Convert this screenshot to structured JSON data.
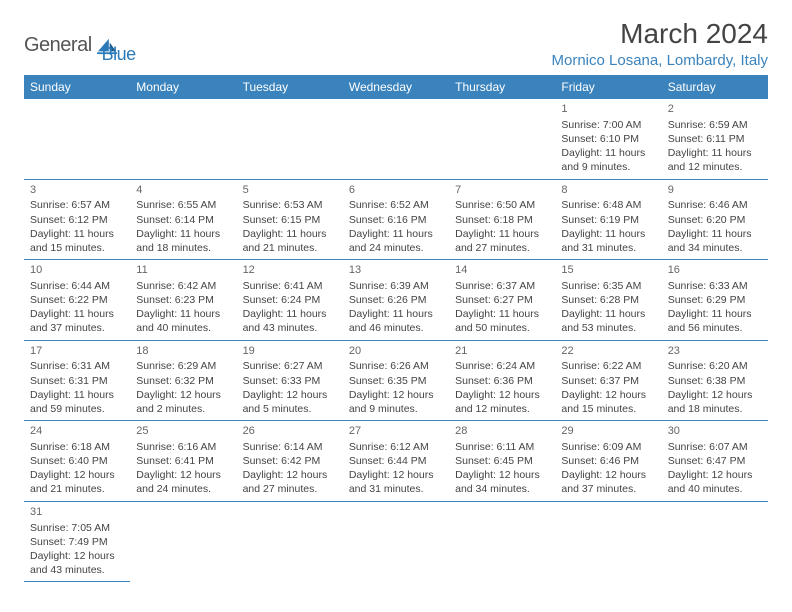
{
  "brand": {
    "general": "General",
    "blue": "Blue"
  },
  "title": "March 2024",
  "location": "Mornico Losana, Lombardy, Italy",
  "colors": {
    "accent": "#3a83bd",
    "text": "#444444"
  },
  "calendar": {
    "day_headers": [
      "Sunday",
      "Monday",
      "Tuesday",
      "Wednesday",
      "Thursday",
      "Friday",
      "Saturday"
    ],
    "weeks": [
      [
        null,
        null,
        null,
        null,
        null,
        {
          "n": "1",
          "sr": "Sunrise: 7:00 AM",
          "ss": "Sunset: 6:10 PM",
          "d1": "Daylight: 11 hours",
          "d2": "and 9 minutes."
        },
        {
          "n": "2",
          "sr": "Sunrise: 6:59 AM",
          "ss": "Sunset: 6:11 PM",
          "d1": "Daylight: 11 hours",
          "d2": "and 12 minutes."
        }
      ],
      [
        {
          "n": "3",
          "sr": "Sunrise: 6:57 AM",
          "ss": "Sunset: 6:12 PM",
          "d1": "Daylight: 11 hours",
          "d2": "and 15 minutes."
        },
        {
          "n": "4",
          "sr": "Sunrise: 6:55 AM",
          "ss": "Sunset: 6:14 PM",
          "d1": "Daylight: 11 hours",
          "d2": "and 18 minutes."
        },
        {
          "n": "5",
          "sr": "Sunrise: 6:53 AM",
          "ss": "Sunset: 6:15 PM",
          "d1": "Daylight: 11 hours",
          "d2": "and 21 minutes."
        },
        {
          "n": "6",
          "sr": "Sunrise: 6:52 AM",
          "ss": "Sunset: 6:16 PM",
          "d1": "Daylight: 11 hours",
          "d2": "and 24 minutes."
        },
        {
          "n": "7",
          "sr": "Sunrise: 6:50 AM",
          "ss": "Sunset: 6:18 PM",
          "d1": "Daylight: 11 hours",
          "d2": "and 27 minutes."
        },
        {
          "n": "8",
          "sr": "Sunrise: 6:48 AM",
          "ss": "Sunset: 6:19 PM",
          "d1": "Daylight: 11 hours",
          "d2": "and 31 minutes."
        },
        {
          "n": "9",
          "sr": "Sunrise: 6:46 AM",
          "ss": "Sunset: 6:20 PM",
          "d1": "Daylight: 11 hours",
          "d2": "and 34 minutes."
        }
      ],
      [
        {
          "n": "10",
          "sr": "Sunrise: 6:44 AM",
          "ss": "Sunset: 6:22 PM",
          "d1": "Daylight: 11 hours",
          "d2": "and 37 minutes."
        },
        {
          "n": "11",
          "sr": "Sunrise: 6:42 AM",
          "ss": "Sunset: 6:23 PM",
          "d1": "Daylight: 11 hours",
          "d2": "and 40 minutes."
        },
        {
          "n": "12",
          "sr": "Sunrise: 6:41 AM",
          "ss": "Sunset: 6:24 PM",
          "d1": "Daylight: 11 hours",
          "d2": "and 43 minutes."
        },
        {
          "n": "13",
          "sr": "Sunrise: 6:39 AM",
          "ss": "Sunset: 6:26 PM",
          "d1": "Daylight: 11 hours",
          "d2": "and 46 minutes."
        },
        {
          "n": "14",
          "sr": "Sunrise: 6:37 AM",
          "ss": "Sunset: 6:27 PM",
          "d1": "Daylight: 11 hours",
          "d2": "and 50 minutes."
        },
        {
          "n": "15",
          "sr": "Sunrise: 6:35 AM",
          "ss": "Sunset: 6:28 PM",
          "d1": "Daylight: 11 hours",
          "d2": "and 53 minutes."
        },
        {
          "n": "16",
          "sr": "Sunrise: 6:33 AM",
          "ss": "Sunset: 6:29 PM",
          "d1": "Daylight: 11 hours",
          "d2": "and 56 minutes."
        }
      ],
      [
        {
          "n": "17",
          "sr": "Sunrise: 6:31 AM",
          "ss": "Sunset: 6:31 PM",
          "d1": "Daylight: 11 hours",
          "d2": "and 59 minutes."
        },
        {
          "n": "18",
          "sr": "Sunrise: 6:29 AM",
          "ss": "Sunset: 6:32 PM",
          "d1": "Daylight: 12 hours",
          "d2": "and 2 minutes."
        },
        {
          "n": "19",
          "sr": "Sunrise: 6:27 AM",
          "ss": "Sunset: 6:33 PM",
          "d1": "Daylight: 12 hours",
          "d2": "and 5 minutes."
        },
        {
          "n": "20",
          "sr": "Sunrise: 6:26 AM",
          "ss": "Sunset: 6:35 PM",
          "d1": "Daylight: 12 hours",
          "d2": "and 9 minutes."
        },
        {
          "n": "21",
          "sr": "Sunrise: 6:24 AM",
          "ss": "Sunset: 6:36 PM",
          "d1": "Daylight: 12 hours",
          "d2": "and 12 minutes."
        },
        {
          "n": "22",
          "sr": "Sunrise: 6:22 AM",
          "ss": "Sunset: 6:37 PM",
          "d1": "Daylight: 12 hours",
          "d2": "and 15 minutes."
        },
        {
          "n": "23",
          "sr": "Sunrise: 6:20 AM",
          "ss": "Sunset: 6:38 PM",
          "d1": "Daylight: 12 hours",
          "d2": "and 18 minutes."
        }
      ],
      [
        {
          "n": "24",
          "sr": "Sunrise: 6:18 AM",
          "ss": "Sunset: 6:40 PM",
          "d1": "Daylight: 12 hours",
          "d2": "and 21 minutes."
        },
        {
          "n": "25",
          "sr": "Sunrise: 6:16 AM",
          "ss": "Sunset: 6:41 PM",
          "d1": "Daylight: 12 hours",
          "d2": "and 24 minutes."
        },
        {
          "n": "26",
          "sr": "Sunrise: 6:14 AM",
          "ss": "Sunset: 6:42 PM",
          "d1": "Daylight: 12 hours",
          "d2": "and 27 minutes."
        },
        {
          "n": "27",
          "sr": "Sunrise: 6:12 AM",
          "ss": "Sunset: 6:44 PM",
          "d1": "Daylight: 12 hours",
          "d2": "and 31 minutes."
        },
        {
          "n": "28",
          "sr": "Sunrise: 6:11 AM",
          "ss": "Sunset: 6:45 PM",
          "d1": "Daylight: 12 hours",
          "d2": "and 34 minutes."
        },
        {
          "n": "29",
          "sr": "Sunrise: 6:09 AM",
          "ss": "Sunset: 6:46 PM",
          "d1": "Daylight: 12 hours",
          "d2": "and 37 minutes."
        },
        {
          "n": "30",
          "sr": "Sunrise: 6:07 AM",
          "ss": "Sunset: 6:47 PM",
          "d1": "Daylight: 12 hours",
          "d2": "and 40 minutes."
        }
      ],
      [
        {
          "n": "31",
          "sr": "Sunrise: 7:05 AM",
          "ss": "Sunset: 7:49 PM",
          "d1": "Daylight: 12 hours",
          "d2": "and 43 minutes."
        },
        null,
        null,
        null,
        null,
        null,
        null
      ]
    ]
  }
}
